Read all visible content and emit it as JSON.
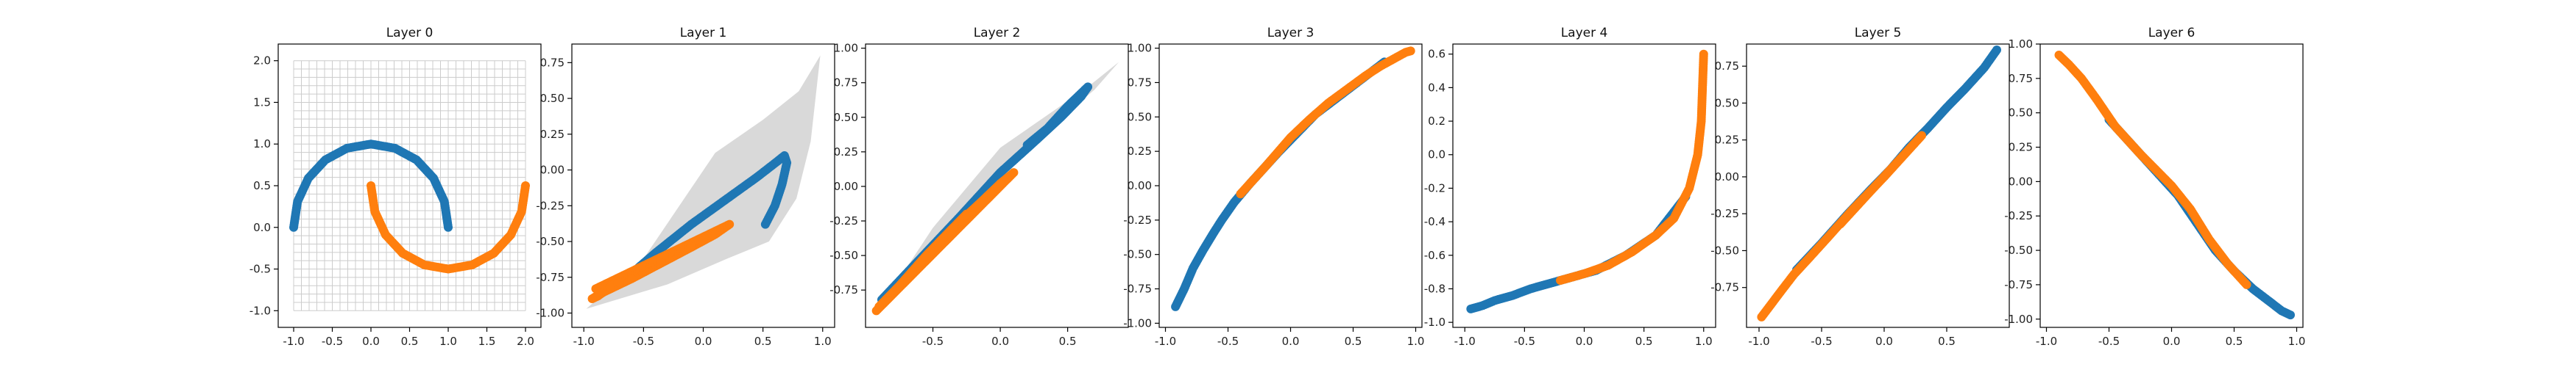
{
  "chart_data": [
    {
      "type": "scatter",
      "title": "Layer 0",
      "xlim": [
        -1.2,
        2.2
      ],
      "ylim": [
        -1.2,
        2.2
      ],
      "xticks": [
        "-1.0",
        "-0.5",
        "0.0",
        "0.5",
        "1.0",
        "1.5",
        "2.0"
      ],
      "yticks": [
        "-1.0",
        "-0.5",
        "0.0",
        "0.5",
        "1.0",
        "1.5",
        "2.0"
      ],
      "background": {
        "kind": "grid",
        "x_range": [
          -1.0,
          2.0
        ],
        "y_range": [
          -1.0,
          2.0
        ],
        "step": 0.1,
        "color": "#cccccc"
      },
      "series": [
        {
          "color": "#1f77b4",
          "points": [
            [
              -1.0,
              0.0
            ],
            [
              -0.95,
              0.31
            ],
            [
              -0.81,
              0.59
            ],
            [
              -0.59,
              0.81
            ],
            [
              -0.31,
              0.95
            ],
            [
              0.0,
              1.0
            ],
            [
              0.31,
              0.95
            ],
            [
              0.59,
              0.81
            ],
            [
              0.81,
              0.59
            ],
            [
              0.95,
              0.31
            ],
            [
              1.0,
              0.0
            ]
          ]
        },
        {
          "color": "#ff7f0e",
          "points": [
            [
              0.0,
              0.5
            ],
            [
              0.05,
              0.19
            ],
            [
              0.19,
              -0.09
            ],
            [
              0.41,
              -0.31
            ],
            [
              0.69,
              -0.45
            ],
            [
              1.0,
              -0.5
            ],
            [
              1.31,
              -0.45
            ],
            [
              1.59,
              -0.31
            ],
            [
              1.81,
              -0.09
            ],
            [
              1.95,
              0.19
            ],
            [
              2.0,
              0.5
            ]
          ]
        }
      ]
    },
    {
      "type": "scatter",
      "title": "Layer 1",
      "xlim": [
        -1.1,
        1.1
      ],
      "ylim": [
        -1.1,
        0.88
      ],
      "xticks": [
        "-1.0",
        "-0.5",
        "0.0",
        "0.5",
        "1.0"
      ],
      "yticks": [
        "-1.00",
        "-0.75",
        "-0.50",
        "-0.25",
        "0.00",
        "0.25",
        "0.50",
        "0.75"
      ],
      "background": {
        "kind": "region",
        "color": "#d9d9d9",
        "polygon": [
          [
            -0.98,
            -0.97
          ],
          [
            -0.5,
            -0.62
          ],
          [
            0.1,
            0.12
          ],
          [
            0.5,
            0.35
          ],
          [
            0.8,
            0.55
          ],
          [
            0.98,
            0.8
          ],
          [
            0.9,
            0.2
          ],
          [
            0.78,
            -0.2
          ],
          [
            0.55,
            -0.5
          ],
          [
            0.2,
            -0.62
          ],
          [
            -0.3,
            -0.8
          ],
          [
            -0.98,
            -0.97
          ]
        ]
      },
      "series": [
        {
          "color": "#1f77b4",
          "points": [
            [
              -0.65,
              -0.76
            ],
            [
              -0.4,
              -0.58
            ],
            [
              -0.1,
              -0.38
            ],
            [
              0.2,
              -0.2
            ],
            [
              0.45,
              -0.05
            ],
            [
              0.62,
              0.06
            ],
            [
              0.68,
              0.1
            ],
            [
              0.7,
              0.05
            ],
            [
              0.66,
              -0.1
            ],
            [
              0.6,
              -0.25
            ],
            [
              0.52,
              -0.38
            ]
          ]
        },
        {
          "color": "#ff7f0e",
          "points": [
            [
              -0.78,
              -0.82
            ],
            [
              -0.88,
              -0.88
            ],
            [
              -0.93,
              -0.9
            ],
            [
              -0.85,
              -0.86
            ],
            [
              -0.6,
              -0.76
            ],
            [
              -0.35,
              -0.65
            ],
            [
              -0.1,
              -0.54
            ],
            [
              0.1,
              -0.45
            ],
            [
              0.22,
              -0.38
            ],
            [
              -0.9,
              -0.83
            ],
            [
              -0.7,
              -0.79
            ]
          ]
        }
      ]
    },
    {
      "type": "scatter",
      "title": "Layer 2",
      "xlim": [
        -1.0,
        0.95
      ],
      "ylim": [
        -1.02,
        1.03
      ],
      "xticks": [
        "-0.5",
        "0.0",
        "0.5"
      ],
      "yticks": [
        "-0.75",
        "-0.50",
        "-0.25",
        "0.00",
        "0.25",
        "0.50",
        "0.75",
        "1.00"
      ],
      "background": {
        "kind": "region",
        "color": "#d9d9d9",
        "polygon": [
          [
            -0.92,
            -0.92
          ],
          [
            -0.5,
            -0.3
          ],
          [
            0.0,
            0.28
          ],
          [
            0.4,
            0.55
          ],
          [
            0.65,
            0.72
          ],
          [
            0.88,
            0.9
          ],
          [
            0.7,
            0.7
          ],
          [
            0.4,
            0.45
          ],
          [
            0.0,
            0.12
          ],
          [
            -0.5,
            -0.4
          ],
          [
            -0.92,
            -0.92
          ]
        ]
      },
      "series": [
        {
          "color": "#1f77b4",
          "points": [
            [
              -0.88,
              -0.82
            ],
            [
              -0.6,
              -0.53
            ],
            [
              -0.3,
              -0.22
            ],
            [
              0.0,
              0.1
            ],
            [
              0.25,
              0.32
            ],
            [
              0.45,
              0.5
            ],
            [
              0.6,
              0.65
            ],
            [
              0.65,
              0.72
            ],
            [
              0.5,
              0.58
            ],
            [
              0.35,
              0.42
            ],
            [
              0.2,
              0.3
            ]
          ]
        },
        {
          "color": "#ff7f0e",
          "points": [
            [
              -0.9,
              -0.87
            ],
            [
              -0.75,
              -0.72
            ],
            [
              -0.55,
              -0.5
            ],
            [
              -0.35,
              -0.3
            ],
            [
              -0.15,
              -0.12
            ],
            [
              0.0,
              0.02
            ],
            [
              0.1,
              0.1
            ],
            [
              -0.92,
              -0.9
            ],
            [
              -0.65,
              -0.62
            ],
            [
              -0.45,
              -0.4
            ],
            [
              -0.25,
              -0.2
            ]
          ]
        }
      ]
    },
    {
      "type": "scatter",
      "title": "Layer 3",
      "xlim": [
        -1.05,
        1.05
      ],
      "ylim": [
        -1.03,
        1.03
      ],
      "xticks": [
        "-1.0",
        "-0.5",
        "0.0",
        "0.5",
        "1.0"
      ],
      "yticks": [
        "-1.00",
        "-0.75",
        "-0.50",
        "-0.25",
        "0.00",
        "0.25",
        "0.50",
        "0.75",
        "1.00"
      ],
      "series": [
        {
          "color": "#1f77b4",
          "points": [
            [
              -0.92,
              -0.88
            ],
            [
              -0.85,
              -0.75
            ],
            [
              -0.78,
              -0.6
            ],
            [
              -0.7,
              -0.47
            ],
            [
              -0.62,
              -0.35
            ],
            [
              -0.55,
              -0.25
            ],
            [
              -0.45,
              -0.12
            ],
            [
              -0.32,
              0.02
            ],
            [
              -0.1,
              0.24
            ],
            [
              0.2,
              0.52
            ],
            [
              0.75,
              0.9
            ]
          ]
        },
        {
          "color": "#ff7f0e",
          "points": [
            [
              -0.4,
              -0.06
            ],
            [
              -0.2,
              0.14
            ],
            [
              0.0,
              0.35
            ],
            [
              0.15,
              0.48
            ],
            [
              0.3,
              0.6
            ],
            [
              0.45,
              0.7
            ],
            [
              0.6,
              0.8
            ],
            [
              0.72,
              0.87
            ],
            [
              0.82,
              0.92
            ],
            [
              0.92,
              0.97
            ],
            [
              0.96,
              0.98
            ]
          ]
        }
      ]
    },
    {
      "type": "scatter",
      "title": "Layer 4",
      "xlim": [
        -1.1,
        1.1
      ],
      "ylim": [
        -1.03,
        0.66
      ],
      "xticks": [
        "-1.0",
        "-0.5",
        "0.0",
        "0.5",
        "1.0"
      ],
      "yticks": [
        "-1.0",
        "-0.8",
        "-0.6",
        "-0.4",
        "-0.2",
        "0.0",
        "0.2",
        "0.4",
        "0.6"
      ],
      "series": [
        {
          "color": "#1f77b4",
          "points": [
            [
              -0.95,
              -0.92
            ],
            [
              -0.85,
              -0.9
            ],
            [
              -0.75,
              -0.87
            ],
            [
              -0.6,
              -0.84
            ],
            [
              -0.45,
              -0.8
            ],
            [
              -0.3,
              -0.77
            ],
            [
              -0.1,
              -0.73
            ],
            [
              0.1,
              -0.69
            ],
            [
              0.35,
              -0.6
            ],
            [
              0.6,
              -0.48
            ],
            [
              0.85,
              -0.25
            ]
          ]
        },
        {
          "color": "#ff7f0e",
          "points": [
            [
              -0.2,
              -0.75
            ],
            [
              0.0,
              -0.71
            ],
            [
              0.2,
              -0.66
            ],
            [
              0.4,
              -0.58
            ],
            [
              0.6,
              -0.48
            ],
            [
              0.75,
              -0.38
            ],
            [
              0.88,
              -0.2
            ],
            [
              0.95,
              0.0
            ],
            [
              0.98,
              0.2
            ],
            [
              0.99,
              0.4
            ],
            [
              1.0,
              0.6
            ]
          ]
        }
      ]
    },
    {
      "type": "scatter",
      "title": "Layer 5",
      "xlim": [
        -1.1,
        1.0
      ],
      "ylim": [
        -1.02,
        0.9
      ],
      "xticks": [
        "-1.0",
        "-0.5",
        "0.0",
        "0.5"
      ],
      "yticks": [
        "-0.75",
        "-0.50",
        "-0.25",
        "0.00",
        "0.25",
        "0.50",
        "0.75"
      ],
      "series": [
        {
          "color": "#1f77b4",
          "points": [
            [
              -0.7,
              -0.63
            ],
            [
              -0.5,
              -0.45
            ],
            [
              -0.3,
              -0.26
            ],
            [
              -0.1,
              -0.08
            ],
            [
              0.05,
              0.05
            ],
            [
              0.2,
              0.2
            ],
            [
              0.35,
              0.33
            ],
            [
              0.5,
              0.47
            ],
            [
              0.65,
              0.6
            ],
            [
              0.8,
              0.74
            ],
            [
              0.9,
              0.86
            ]
          ]
        },
        {
          "color": "#ff7f0e",
          "points": [
            [
              -0.98,
              -0.95
            ],
            [
              -0.9,
              -0.86
            ],
            [
              -0.82,
              -0.77
            ],
            [
              -0.72,
              -0.66
            ],
            [
              -0.6,
              -0.55
            ],
            [
              -0.45,
              -0.41
            ],
            [
              -0.25,
              -0.22
            ],
            [
              0.0,
              0.0
            ],
            [
              0.15,
              0.14
            ],
            [
              0.3,
              0.28
            ],
            [
              -0.35,
              -0.32
            ]
          ]
        }
      ]
    },
    {
      "type": "scatter",
      "title": "Layer 6",
      "xlim": [
        -1.05,
        1.05
      ],
      "ylim": [
        -1.06,
        1.0
      ],
      "xticks": [
        "-1.0",
        "-0.5",
        "0.0",
        "0.5",
        "1.0"
      ],
      "yticks": [
        "-1.00",
        "-0.75",
        "-0.50",
        "-0.25",
        "0.00",
        "0.25",
        "0.50",
        "0.75",
        "1.00"
      ],
      "series": [
        {
          "color": "#1f77b4",
          "points": [
            [
              -0.5,
              0.45
            ],
            [
              -0.3,
              0.25
            ],
            [
              -0.15,
              0.1
            ],
            [
              0.05,
              -0.1
            ],
            [
              0.2,
              -0.3
            ],
            [
              0.35,
              -0.5
            ],
            [
              0.5,
              -0.65
            ],
            [
              0.65,
              -0.78
            ],
            [
              0.78,
              -0.87
            ],
            [
              0.88,
              -0.94
            ],
            [
              0.95,
              -0.97
            ]
          ]
        },
        {
          "color": "#ff7f0e",
          "points": [
            [
              -0.9,
              0.92
            ],
            [
              -0.82,
              0.85
            ],
            [
              -0.72,
              0.75
            ],
            [
              -0.6,
              0.6
            ],
            [
              -0.45,
              0.4
            ],
            [
              -0.25,
              0.2
            ],
            [
              0.0,
              -0.03
            ],
            [
              0.15,
              -0.2
            ],
            [
              0.3,
              -0.42
            ],
            [
              0.45,
              -0.6
            ],
            [
              0.6,
              -0.75
            ]
          ]
        }
      ]
    }
  ]
}
